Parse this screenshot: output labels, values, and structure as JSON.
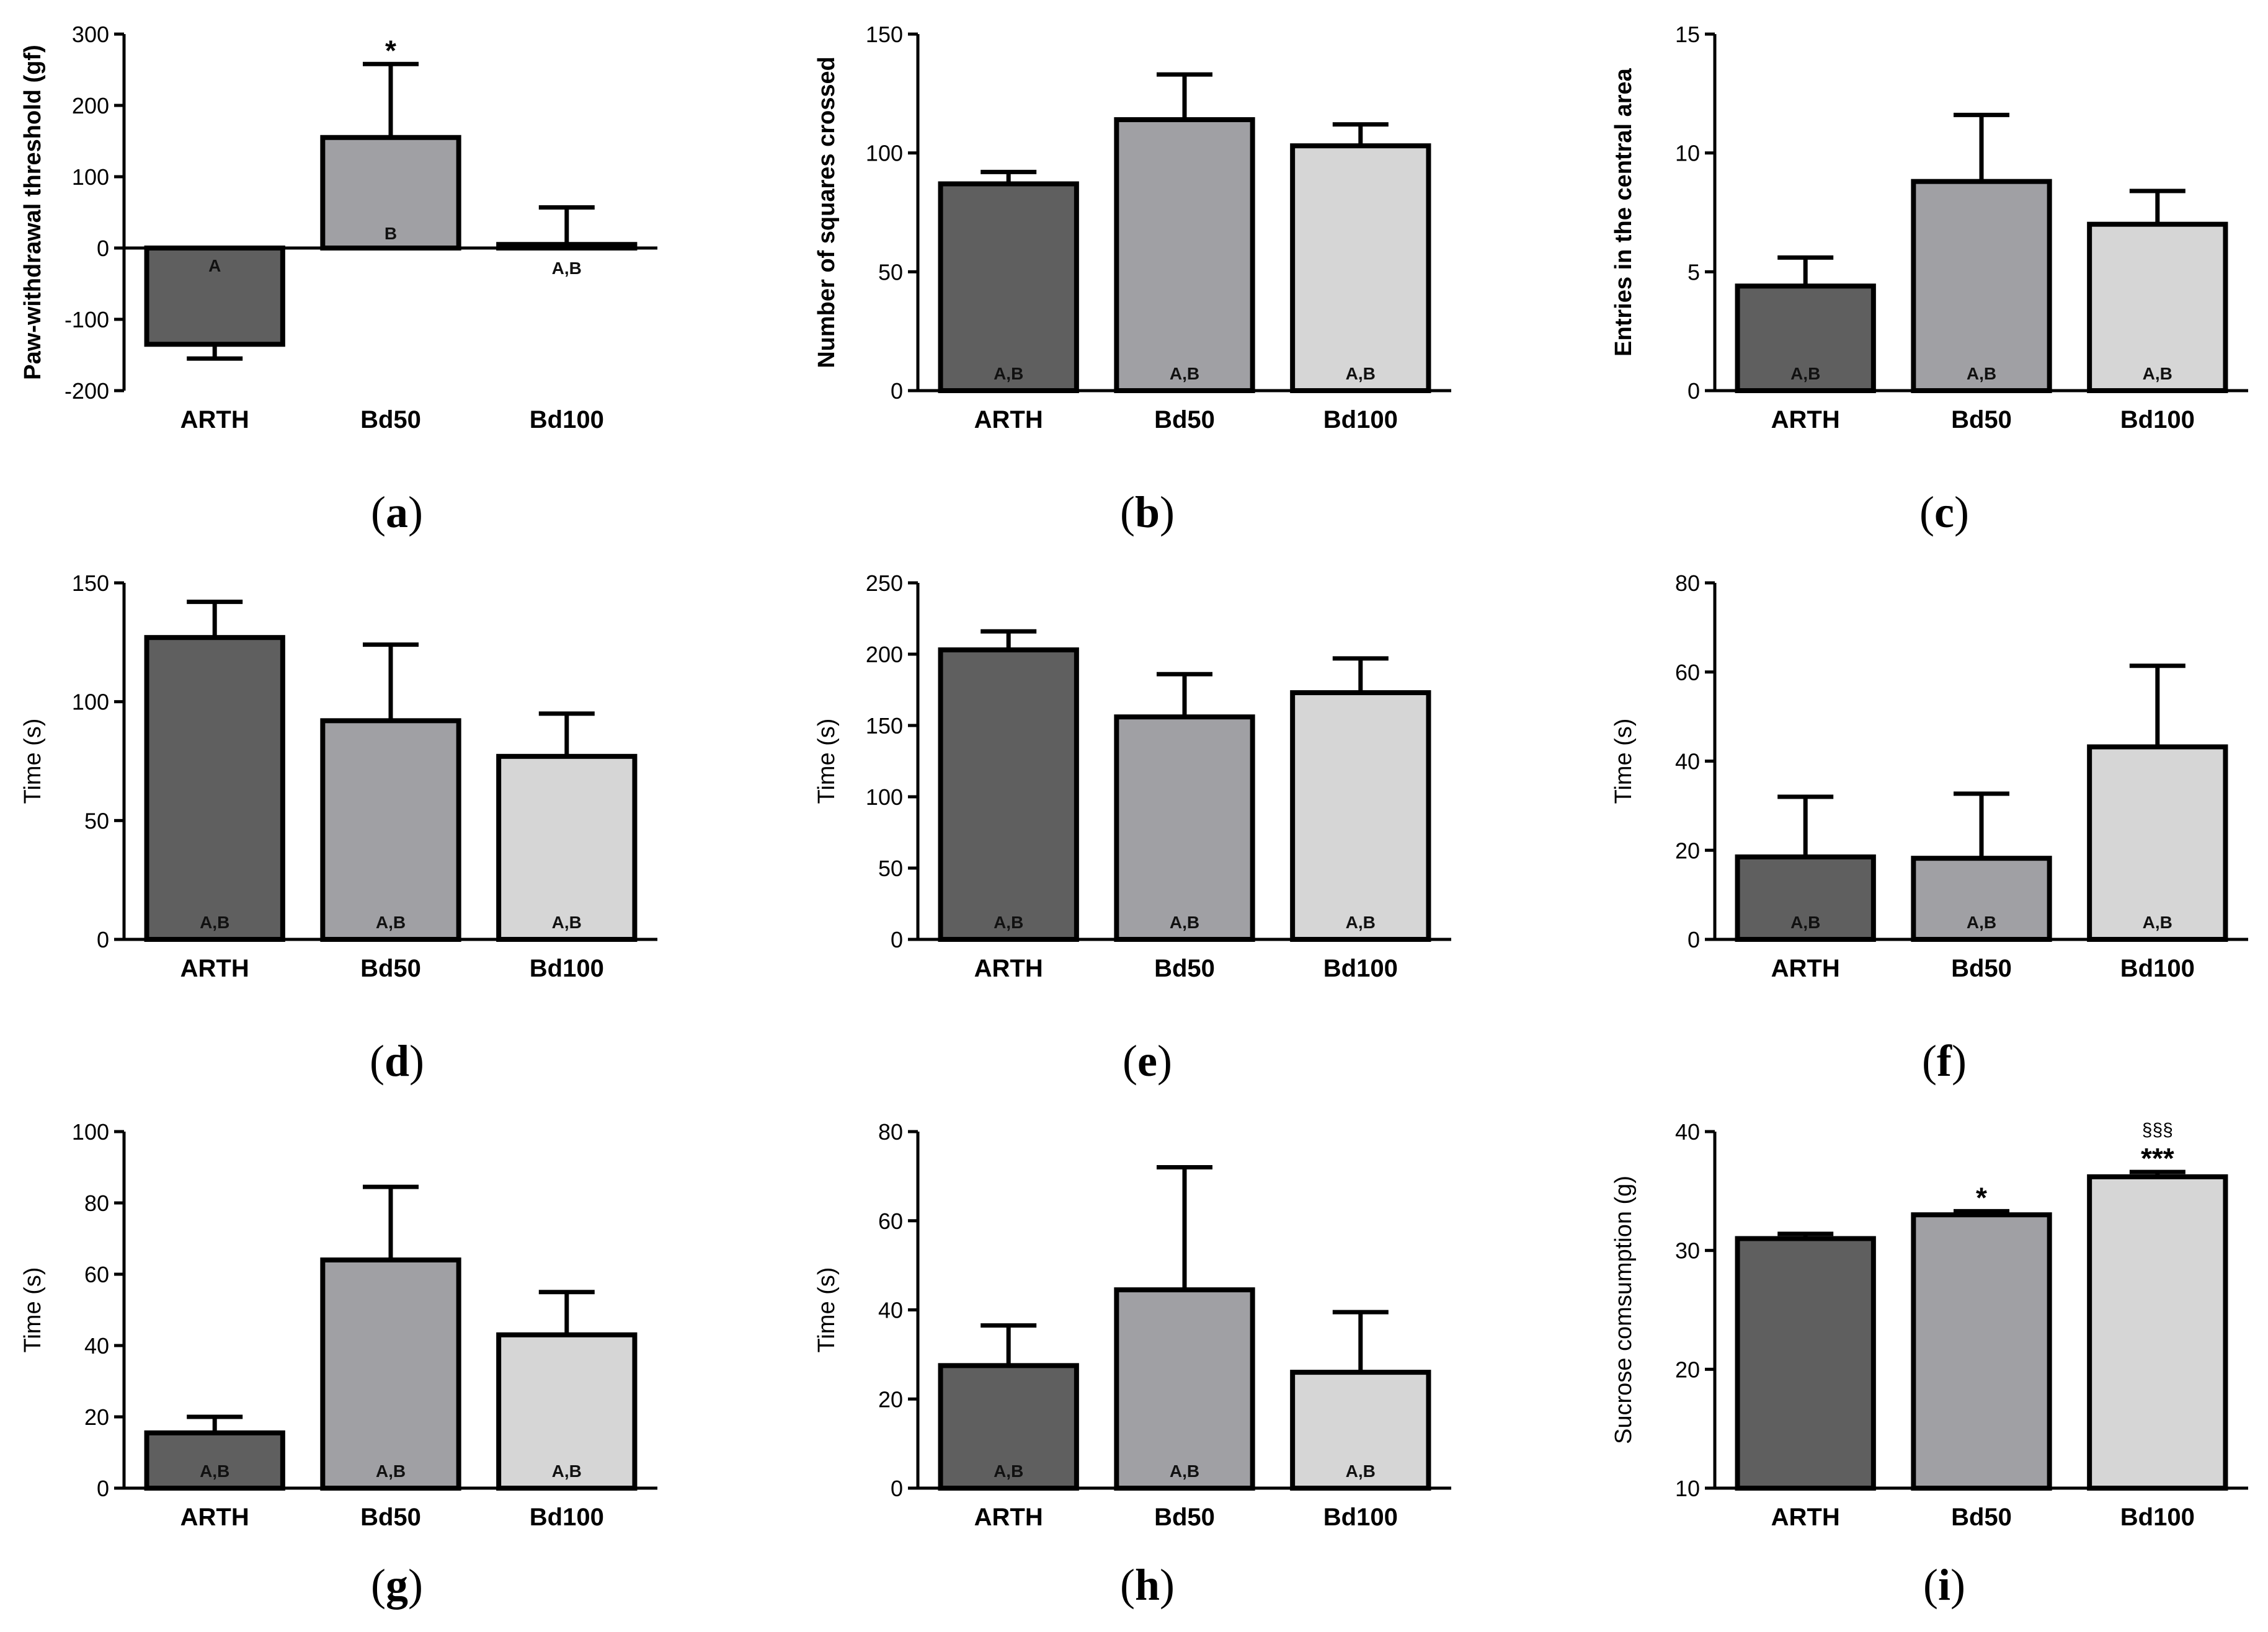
{
  "colors": {
    "ARTH": "#5f5f5f",
    "Bd50": "#a0a0a4",
    "Bd100": "#d6d6d6",
    "stroke": "#000000"
  },
  "chart_data": [
    {
      "panel": "a",
      "type": "bar",
      "ylabel": "Paw-withdrawal threshold (gf)",
      "ylabel_bold": true,
      "ylim": [
        -200,
        300
      ],
      "yticks": [
        -200,
        -100,
        0,
        100,
        200,
        300
      ],
      "categories": [
        "ARTH",
        "Bd50",
        "Bd100"
      ],
      "values": [
        -135,
        155,
        5
      ],
      "errors": [
        20,
        103,
        52
      ],
      "annotations": [
        "A",
        "B",
        "A,B"
      ],
      "significance": [
        "",
        "*",
        ""
      ],
      "significance2": [
        "",
        "",
        ""
      ]
    },
    {
      "panel": "b",
      "type": "bar",
      "ylabel": "Number of squares crossed",
      "ylabel_bold": true,
      "ylim": [
        0,
        150
      ],
      "yticks": [
        0,
        50,
        100,
        150
      ],
      "categories": [
        "ARTH",
        "Bd50",
        "Bd100"
      ],
      "values": [
        87,
        114,
        103
      ],
      "errors": [
        5,
        19,
        9
      ],
      "annotations": [
        "A,B",
        "A,B",
        "A,B"
      ],
      "significance": [
        "",
        "",
        ""
      ],
      "significance2": [
        "",
        "",
        ""
      ]
    },
    {
      "panel": "c",
      "type": "bar",
      "ylabel": "Entries in the central area",
      "ylabel_bold": true,
      "ylim": [
        0,
        15
      ],
      "yticks": [
        0,
        5,
        10,
        15
      ],
      "categories": [
        "ARTH",
        "Bd50",
        "Bd100"
      ],
      "values": [
        4.4,
        8.8,
        7.0
      ],
      "errors": [
        1.2,
        2.8,
        1.4
      ],
      "annotations": [
        "A,B",
        "A,B",
        "A,B"
      ],
      "significance": [
        "",
        "",
        ""
      ],
      "significance2": [
        "",
        "",
        ""
      ]
    },
    {
      "panel": "d",
      "type": "bar",
      "ylabel": "Time (s)",
      "ylabel_bold": false,
      "ylim": [
        0,
        150
      ],
      "yticks": [
        0,
        50,
        100,
        150
      ],
      "categories": [
        "ARTH",
        "Bd50",
        "Bd100"
      ],
      "values": [
        127,
        92,
        77
      ],
      "errors": [
        15,
        32,
        18
      ],
      "annotations": [
        "A,B",
        "A,B",
        "A,B"
      ],
      "significance": [
        "",
        "",
        ""
      ],
      "significance2": [
        "",
        "",
        ""
      ]
    },
    {
      "panel": "e",
      "type": "bar",
      "ylabel": "Time (s)",
      "ylabel_bold": false,
      "ylim": [
        0,
        250
      ],
      "yticks": [
        0,
        50,
        100,
        150,
        200,
        250
      ],
      "categories": [
        "ARTH",
        "Bd50",
        "Bd100"
      ],
      "values": [
        203,
        156,
        173
      ],
      "errors": [
        13,
        30,
        24
      ],
      "annotations": [
        "A,B",
        "A,B",
        "A,B"
      ],
      "significance": [
        "",
        "",
        ""
      ],
      "significance2": [
        "",
        "",
        ""
      ]
    },
    {
      "panel": "f",
      "type": "bar",
      "ylabel": "Time (s)",
      "ylabel_bold": false,
      "ylim": [
        0,
        80
      ],
      "yticks": [
        0,
        20,
        40,
        60,
        80
      ],
      "categories": [
        "ARTH",
        "Bd50",
        "Bd100"
      ],
      "values": [
        18.5,
        18.2,
        43.2
      ],
      "errors": [
        13.5,
        14.5,
        18.2
      ],
      "annotations": [
        "A,B",
        "A,B",
        "A,B"
      ],
      "significance": [
        "",
        "",
        ""
      ],
      "significance2": [
        "",
        "",
        ""
      ]
    },
    {
      "panel": "g",
      "type": "bar",
      "ylabel": "Time (s)",
      "ylabel_bold": false,
      "ylim": [
        0,
        100
      ],
      "yticks": [
        0,
        20,
        40,
        60,
        80,
        100
      ],
      "categories": [
        "ARTH",
        "Bd50",
        "Bd100"
      ],
      "values": [
        15.5,
        64,
        43
      ],
      "errors": [
        4.5,
        20.5,
        12
      ],
      "annotations": [
        "A,B",
        "A,B",
        "A,B"
      ],
      "significance": [
        "",
        "",
        ""
      ],
      "significance2": [
        "",
        "",
        ""
      ]
    },
    {
      "panel": "h",
      "type": "bar",
      "ylabel": "Time (s)",
      "ylabel_bold": false,
      "ylim": [
        0,
        80
      ],
      "yticks": [
        0,
        20,
        40,
        60,
        80
      ],
      "categories": [
        "ARTH",
        "Bd50",
        "Bd100"
      ],
      "values": [
        27.5,
        44.5,
        26
      ],
      "errors": [
        9,
        27.5,
        13.5
      ],
      "annotations": [
        "A,B",
        "A,B",
        "A,B"
      ],
      "significance": [
        "",
        "",
        ""
      ],
      "significance2": [
        "",
        "",
        ""
      ]
    },
    {
      "panel": "i",
      "type": "bar",
      "ylabel": "Sucrose comsumption (g)",
      "ylabel_bold": false,
      "ylim": [
        10,
        40
      ],
      "yticks": [
        10,
        20,
        30,
        40
      ],
      "categories": [
        "ARTH",
        "Bd50",
        "Bd100"
      ],
      "values": [
        31,
        33,
        36.2
      ],
      "errors": [
        0.4,
        0.3,
        0.4
      ],
      "annotations": [
        "",
        "",
        ""
      ],
      "significance": [
        "",
        "*",
        "***"
      ],
      "significance2": [
        "",
        "",
        "§§§"
      ]
    }
  ],
  "panel_labels": [
    "a",
    "b",
    "c",
    "d",
    "e",
    "f",
    "g",
    "h",
    "i"
  ]
}
